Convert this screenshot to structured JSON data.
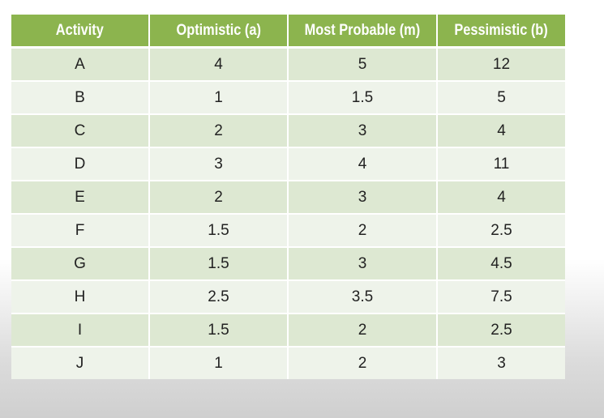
{
  "table": {
    "headers": [
      "Activity",
      "Optimistic (a)",
      "Most Probable (m)",
      "Pessimistic (b)"
    ],
    "rows": [
      [
        "A",
        "4",
        "5",
        "12"
      ],
      [
        "B",
        "1",
        "1.5",
        "5"
      ],
      [
        "C",
        "2",
        "3",
        "4"
      ],
      [
        "D",
        "3",
        "4",
        "11"
      ],
      [
        "E",
        "2",
        "3",
        "4"
      ],
      [
        "F",
        "1.5",
        "2",
        "2.5"
      ],
      [
        "G",
        "1.5",
        "3",
        "4.5"
      ],
      [
        "H",
        "2.5",
        "3.5",
        "7.5"
      ],
      [
        "I",
        "1.5",
        "2",
        "2.5"
      ],
      [
        "J",
        "1",
        "2",
        "3"
      ]
    ]
  },
  "colors": {
    "header_bg": "#8cb44e",
    "header_text": "#ffffff",
    "row_odd_bg": "#dde8d2",
    "row_even_bg": "#eef3ea",
    "cell_text": "#222222"
  }
}
